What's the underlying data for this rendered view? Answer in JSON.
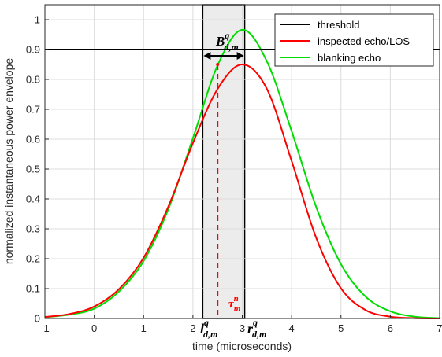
{
  "chart_data": {
    "type": "line",
    "title": "",
    "xlabel": "time (microseconds)",
    "ylabel": "normalized instantaneous power envelope",
    "xlim": [
      -1,
      7
    ],
    "ylim": [
      0,
      1.05
    ],
    "xticks": [
      "-1",
      "0",
      "1",
      "2",
      "3",
      "4",
      "5",
      "6",
      "7"
    ],
    "yticks": [
      "0",
      "0.1",
      "0.2",
      "0.3",
      "0.4",
      "0.5",
      "0.6",
      "0.7",
      "0.8",
      "0.9",
      "1"
    ],
    "grid": true,
    "legend_position": "top-right",
    "series": [
      {
        "name": "threshold",
        "color": "#000000",
        "x": [
          -1,
          7
        ],
        "y": [
          0.9,
          0.9
        ]
      },
      {
        "name": "inspected echo/LOS",
        "color": "#ff0000",
        "x": [
          -1,
          -0.5,
          0,
          0.5,
          1,
          1.5,
          2,
          2.5,
          3,
          3.5,
          4,
          4.5,
          5,
          5.5,
          6,
          6.5,
          7
        ],
        "y": [
          0.005,
          0.015,
          0.04,
          0.098,
          0.203,
          0.374,
          0.587,
          0.768,
          0.85,
          0.768,
          0.527,
          0.269,
          0.101,
          0.028,
          0.006,
          0.001,
          0
        ]
      },
      {
        "name": "blanking echo",
        "color": "#00dd00",
        "x": [
          -1,
          -0.5,
          0,
          0.5,
          1,
          1.5,
          2,
          2.5,
          3,
          3.5,
          4,
          4.5,
          5,
          5.5,
          6,
          6.5,
          7
        ],
        "y": [
          0.004,
          0.013,
          0.033,
          0.09,
          0.192,
          0.365,
          0.603,
          0.847,
          0.966,
          0.86,
          0.627,
          0.372,
          0.182,
          0.073,
          0.024,
          0.006,
          0.001
        ]
      }
    ],
    "annotations": {
      "region": {
        "x_start": 2.2,
        "x_end": 3.05
      },
      "peak_marker_x": 2.5,
      "width_label": {
        "base": "B",
        "sup": "q",
        "sub": "d,m"
      },
      "left_label": {
        "base": "l",
        "sup": "q",
        "sub": "d,m"
      },
      "right_label": {
        "base": "r",
        "sup": "q",
        "sub": "d,m"
      },
      "tau_label": {
        "base": "τ",
        "sup": "n",
        "sub": "m"
      }
    }
  }
}
